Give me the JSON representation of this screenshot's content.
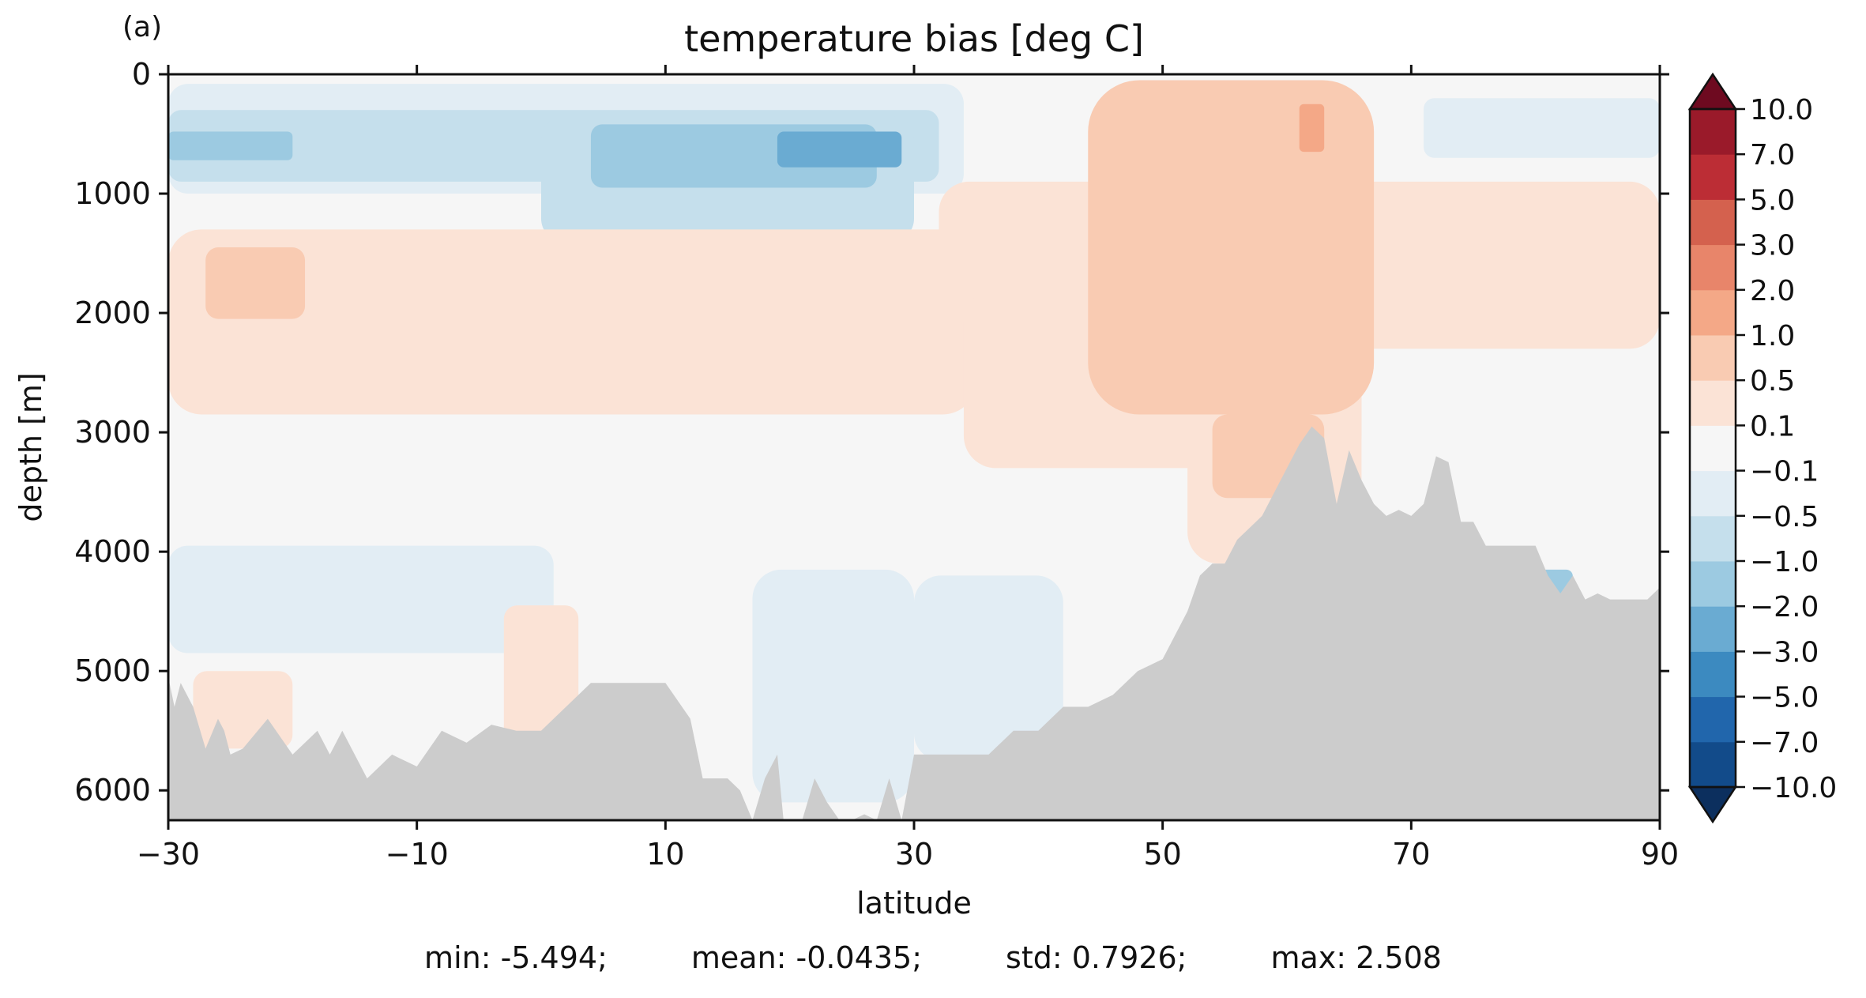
{
  "panel_label": "(a)",
  "chart_data": {
    "type": "heatmap",
    "title": "temperature bias [deg C]",
    "xlabel": "latitude",
    "ylabel": "depth [m]",
    "xlim": [
      -30,
      90
    ],
    "ylim": [
      6250,
      0
    ],
    "x_ticks": [
      "−30",
      "−10",
      "10",
      "30",
      "50",
      "70",
      "90"
    ],
    "x_tick_values": [
      -30,
      -10,
      10,
      30,
      50,
      70,
      90
    ],
    "y_ticks": [
      "0",
      "1000",
      "2000",
      "3000",
      "4000",
      "5000",
      "6000"
    ],
    "y_tick_values": [
      0,
      1000,
      2000,
      3000,
      4000,
      5000,
      6000
    ],
    "colorbar": {
      "levels": [
        "−10.0",
        "−7.0",
        "−5.0",
        "−3.0",
        "−2.0",
        "−1.0",
        "−0.5",
        "−0.1",
        "0.1",
        "0.5",
        "1.0",
        "2.0",
        "3.0",
        "5.0",
        "7.0",
        "10.0"
      ],
      "level_values": [
        -10,
        -7,
        -5,
        -3,
        -2,
        -1,
        -0.5,
        -0.1,
        0.1,
        0.5,
        1,
        2,
        3,
        5,
        7,
        10
      ],
      "colors": [
        "#124b8a",
        "#2166ac",
        "#3c8ac0",
        "#6aabd2",
        "#9ccae1",
        "#c5dfec",
        "#e2edf4",
        "#f6f6f6",
        "#fbe3d6",
        "#f9cbb2",
        "#f4a887",
        "#e8856a",
        "#d4614e",
        "#bc2d35",
        "#9a1a2a"
      ],
      "extend_low_color": "#0c2f5e",
      "extend_high_color": "#6e0a20"
    },
    "land_color": "#cccccc",
    "regions": [
      {
        "x": [
          -30,
          90
        ],
        "depth": [
          0,
          6250
        ],
        "bias": 0.0
      },
      {
        "x": [
          -30,
          34
        ],
        "depth": [
          80,
          1000
        ],
        "bias": -0.3
      },
      {
        "x": [
          -30,
          32
        ],
        "depth": [
          300,
          900
        ],
        "bias": -0.7
      },
      {
        "x": [
          -30,
          -20
        ],
        "depth": [
          480,
          720
        ],
        "bias": -1.5
      },
      {
        "x": [
          0,
          30
        ],
        "depth": [
          350,
          1400
        ],
        "bias": -0.7
      },
      {
        "x": [
          4,
          27
        ],
        "depth": [
          420,
          950
        ],
        "bias": -1.2
      },
      {
        "x": [
          19,
          29
        ],
        "depth": [
          480,
          780
        ],
        "bias": -2.2
      },
      {
        "x": [
          -30,
          35
        ],
        "depth": [
          1300,
          2850
        ],
        "bias": 0.3
      },
      {
        "x": [
          32,
          90
        ],
        "depth": [
          900,
          2300
        ],
        "bias": 0.3
      },
      {
        "x": [
          34,
          66
        ],
        "depth": [
          1800,
          3300
        ],
        "bias": 0.3
      },
      {
        "x": [
          52,
          66
        ],
        "depth": [
          2400,
          4100
        ],
        "bias": 0.3
      },
      {
        "x": [
          -27,
          -19
        ],
        "depth": [
          1450,
          2050
        ],
        "bias": 0.7
      },
      {
        "x": [
          44,
          67
        ],
        "depth": [
          50,
          2850
        ],
        "bias": 0.7
      },
      {
        "x": [
          54,
          63
        ],
        "depth": [
          2850,
          3550
        ],
        "bias": 0.7
      },
      {
        "x": [
          61,
          63
        ],
        "depth": [
          250,
          650
        ],
        "bias": 1.5
      },
      {
        "x": [
          -30,
          1
        ],
        "depth": [
          3950,
          4850
        ],
        "bias": -0.3
      },
      {
        "x": [
          17,
          30
        ],
        "depth": [
          4150,
          6100
        ],
        "bias": -0.3
      },
      {
        "x": [
          30,
          42
        ],
        "depth": [
          4200,
          5750
        ],
        "bias": -0.3
      },
      {
        "x": [
          -3,
          3
        ],
        "depth": [
          4450,
          5650
        ],
        "bias": 0.3
      },
      {
        "x": [
          -28,
          -20
        ],
        "depth": [
          5000,
          5650
        ],
        "bias": 0.3
      },
      {
        "x": [
          71,
          90
        ],
        "depth": [
          200,
          700
        ],
        "bias": -0.3
      },
      {
        "x": [
          80,
          83
        ],
        "depth": [
          4150,
          4500
        ],
        "bias": -1.5
      },
      {
        "x": [
          80.5,
          81.5
        ],
        "depth": [
          4300,
          4500
        ],
        "bias": -4.0
      }
    ],
    "bathymetry": {
      "x": [
        -30,
        -29.5,
        -29,
        -28,
        -27,
        -26,
        -25.5,
        -25,
        -24,
        -22,
        -20,
        -18,
        -17,
        -16,
        -14,
        -12,
        -10,
        -8,
        -6,
        -4,
        -2,
        0,
        2,
        4,
        6,
        8,
        10,
        12,
        13,
        14,
        15,
        16,
        17,
        18,
        19,
        19.5,
        20,
        21,
        22,
        23,
        24,
        25,
        26,
        27,
        28,
        29,
        30,
        32,
        34,
        36,
        38,
        40,
        42,
        44,
        46,
        48,
        50,
        51,
        52,
        53,
        54,
        55,
        56,
        57,
        58,
        59,
        60,
        61,
        62,
        63,
        64,
        65,
        66,
        67,
        68,
        69,
        70,
        71,
        72,
        73,
        74,
        75,
        76,
        77,
        78,
        79,
        80,
        81,
        82,
        83,
        84,
        85,
        86,
        87,
        88,
        89,
        90
      ],
      "depth": [
        5050,
        5300,
        5100,
        5300,
        5650,
        5400,
        5500,
        5700,
        5650,
        5400,
        5700,
        5500,
        5700,
        5500,
        5900,
        5700,
        5800,
        5500,
        5600,
        5450,
        5500,
        5500,
        5300,
        5100,
        5100,
        5100,
        5100,
        5400,
        5900,
        5900,
        5900,
        6000,
        6250,
        5900,
        5700,
        6250,
        6250,
        6250,
        5900,
        6100,
        6250,
        6250,
        6200,
        6250,
        5900,
        6250,
        5700,
        5700,
        5700,
        5700,
        5500,
        5500,
        5300,
        5300,
        5200,
        5000,
        4900,
        4700,
        4500,
        4200,
        4100,
        4100,
        3900,
        3800,
        3700,
        3500,
        3300,
        3100,
        2950,
        3050,
        3600,
        3150,
        3400,
        3600,
        3700,
        3650,
        3700,
        3600,
        3200,
        3250,
        3750,
        3750,
        3950,
        3950,
        3950,
        3950,
        3950,
        4200,
        4350,
        4200,
        4400,
        4350,
        4400,
        4400,
        4400,
        4400,
        4300
      ]
    }
  },
  "stats": {
    "min": "min: -5.494;",
    "mean": "mean: -0.0435;",
    "std": "std: 0.7926;",
    "max": "max: 2.508"
  }
}
